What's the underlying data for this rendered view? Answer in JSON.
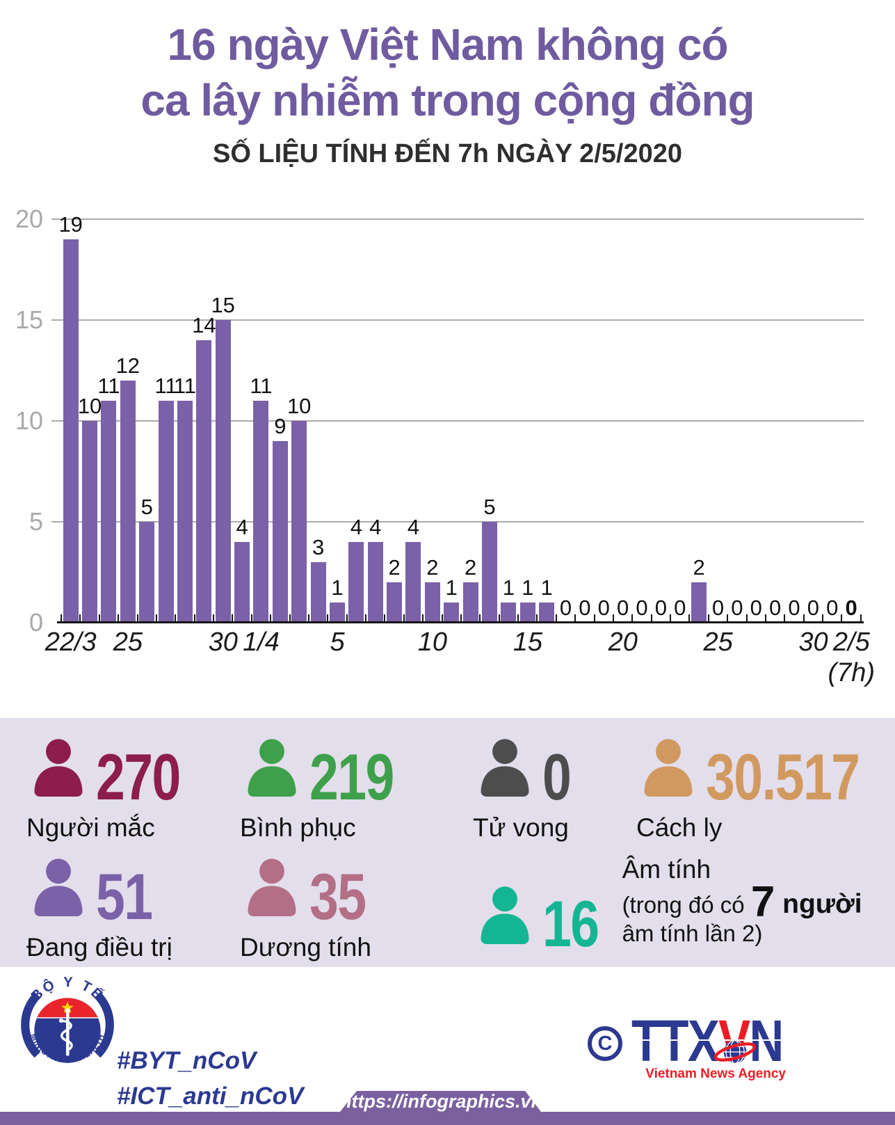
{
  "header": {
    "title_line1": "16 ngày Việt Nam không có",
    "title_line2": "ca lây nhiễm trong cộng đồng",
    "subtitle": "SỐ LIỆU TÍNH ĐẾN 7h NGÀY 2/5/2020"
  },
  "chart_data": {
    "type": "bar",
    "title": "16 ngày Việt Nam không có ca lây nhiễm trong cộng đồng",
    "subtitle": "SỐ LIỆU TÍNH ĐẾN 7h NGÀY 2/5/2020",
    "categories": [
      "22/3",
      "23/3",
      "24/3",
      "25/3",
      "26/3",
      "27/3",
      "28/3",
      "29/3",
      "30/3",
      "31/3",
      "1/4",
      "2/4",
      "3/4",
      "4/4",
      "5/4",
      "6/4",
      "7/4",
      "8/4",
      "9/4",
      "10/4",
      "11/4",
      "12/4",
      "13/4",
      "14/4",
      "15/4",
      "16/4",
      "17/4",
      "18/4",
      "19/4",
      "20/4",
      "21/4",
      "22/4",
      "23/4",
      "24/4",
      "25/4",
      "26/4",
      "27/4",
      "28/4",
      "29/4",
      "30/4",
      "1/5",
      "2/5"
    ],
    "values": [
      19,
      10,
      11,
      12,
      5,
      11,
      11,
      14,
      15,
      4,
      11,
      9,
      10,
      3,
      1,
      4,
      4,
      2,
      4,
      2,
      1,
      2,
      5,
      1,
      1,
      1,
      0,
      0,
      0,
      0,
      0,
      0,
      0,
      2,
      0,
      0,
      0,
      0,
      0,
      0,
      0,
      0
    ],
    "ylim": [
      0,
      20
    ],
    "y_ticks": [
      0,
      5,
      10,
      15,
      20
    ],
    "x_tick_labels": [
      {
        "index": 0,
        "label": "22/3"
      },
      {
        "index": 3,
        "label": "25"
      },
      {
        "index": 8,
        "label": "30"
      },
      {
        "index": 10,
        "label": "1/4"
      },
      {
        "index": 14,
        "label": "5"
      },
      {
        "index": 19,
        "label": "10"
      },
      {
        "index": 24,
        "label": "15"
      },
      {
        "index": 29,
        "label": "20"
      },
      {
        "index": 34,
        "label": "25"
      },
      {
        "index": 39,
        "label": "30"
      },
      {
        "index": 41,
        "label": "2/5",
        "sublabel": "(7h)"
      }
    ],
    "bar_color": "#7A61A8",
    "grid": true,
    "value_labels": true,
    "bold_last_value_label": true,
    "legend": "none"
  },
  "stats": {
    "rows": [
      [
        {
          "value": "270",
          "label": "Người mắc",
          "color": "#8C1D4D"
        },
        {
          "value": "219",
          "label": "Bình phục",
          "color": "#3EA04A"
        },
        {
          "value": "0",
          "label": "Tử vong",
          "color": "#4D4D4D"
        },
        {
          "value": "30.517",
          "label": "Cách ly",
          "color": "#D1995F"
        }
      ],
      [
        {
          "value": "51",
          "label": "Đang điều trị",
          "color": "#7A61A8"
        },
        {
          "value": "35",
          "label": "Dương tính",
          "color": "#B36F85"
        },
        {
          "value": "16",
          "label": "Âm tính",
          "color": "#13B593",
          "note": {
            "line1": "Âm tính",
            "line2_prefix": "(trong đó có ",
            "line2_big": "7",
            "line2_bold": " người",
            "line3": "âm tính lần 2)"
          }
        }
      ]
    ]
  },
  "footer": {
    "moh_logo": {
      "top_text": "BỘ Y TẾ",
      "bottom_text": "MINISTRY OF HEALTH"
    },
    "hashtag1": "#BYT_nCoV",
    "hashtag2": "#ICT_anti_nCoV",
    "copyright_symbol": "C",
    "ttxvn": {
      "part1": "TTX",
      "part2": "V",
      "part3": "N",
      "caption": "Vietnam News Agency"
    },
    "url": "https://infographics.vn"
  },
  "colors": {
    "title_purple": "#6F5B9F",
    "bar_purple": "#7A61A8",
    "panel_lavender": "#E3DEEB",
    "band_purple": "#7B609F",
    "navy_blue": "#2B3990",
    "red": "#EC1C24",
    "gridline_gray": "#ABABAB",
    "axis_black": "#151515"
  }
}
